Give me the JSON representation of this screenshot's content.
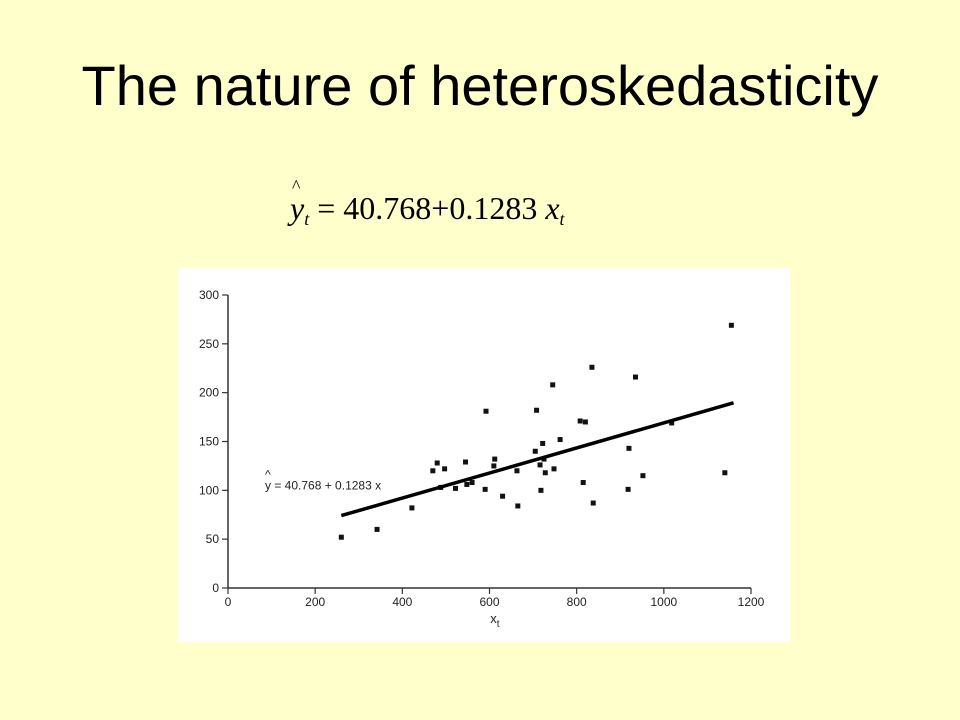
{
  "slide": {
    "title": "The nature of heteroskedasticity"
  },
  "equation": {
    "lhs_var": "y",
    "lhs_sub": "t",
    "equals": "=",
    "rhs_text": "40.768+0.1283",
    "rhs_var": "x",
    "rhs_sub": "t"
  },
  "chart_data": {
    "type": "scatter",
    "title": "",
    "xlabel_main": "x",
    "xlabel_sub": "t",
    "ylabel": "",
    "xlim": [
      0,
      1200
    ],
    "ylim": [
      0,
      300
    ],
    "x_ticks": [
      0,
      200,
      400,
      600,
      800,
      1000,
      1200
    ],
    "y_ticks": [
      0,
      50,
      100,
      150,
      200,
      250,
      300
    ],
    "grid": false,
    "annotation_hat": "^",
    "annotation": "y = 40.768 + 0.1283 x",
    "fit_line": {
      "intercept": 40.768,
      "slope": 0.1283,
      "x_range": [
        260,
        1160
      ]
    },
    "points": [
      {
        "x": 260,
        "y": 52
      },
      {
        "x": 342,
        "y": 60
      },
      {
        "x": 422,
        "y": 82
      },
      {
        "x": 470,
        "y": 120
      },
      {
        "x": 480,
        "y": 128
      },
      {
        "x": 488,
        "y": 103
      },
      {
        "x": 497,
        "y": 122
      },
      {
        "x": 522,
        "y": 102
      },
      {
        "x": 545,
        "y": 129
      },
      {
        "x": 548,
        "y": 106
      },
      {
        "x": 560,
        "y": 108
      },
      {
        "x": 590,
        "y": 101
      },
      {
        "x": 592,
        "y": 181
      },
      {
        "x": 610,
        "y": 125
      },
      {
        "x": 612,
        "y": 132
      },
      {
        "x": 630,
        "y": 94
      },
      {
        "x": 663,
        "y": 120
      },
      {
        "x": 665,
        "y": 84
      },
      {
        "x": 705,
        "y": 140
      },
      {
        "x": 708,
        "y": 182
      },
      {
        "x": 716,
        "y": 126
      },
      {
        "x": 718,
        "y": 100
      },
      {
        "x": 722,
        "y": 148
      },
      {
        "x": 725,
        "y": 132
      },
      {
        "x": 728,
        "y": 118
      },
      {
        "x": 745,
        "y": 208
      },
      {
        "x": 748,
        "y": 122
      },
      {
        "x": 762,
        "y": 152
      },
      {
        "x": 808,
        "y": 171
      },
      {
        "x": 815,
        "y": 108
      },
      {
        "x": 820,
        "y": 170
      },
      {
        "x": 835,
        "y": 226
      },
      {
        "x": 838,
        "y": 87
      },
      {
        "x": 918,
        "y": 101
      },
      {
        "x": 920,
        "y": 143
      },
      {
        "x": 935,
        "y": 216
      },
      {
        "x": 952,
        "y": 115
      },
      {
        "x": 1018,
        "y": 169
      },
      {
        "x": 1140,
        "y": 118
      },
      {
        "x": 1155,
        "y": 269
      }
    ]
  }
}
